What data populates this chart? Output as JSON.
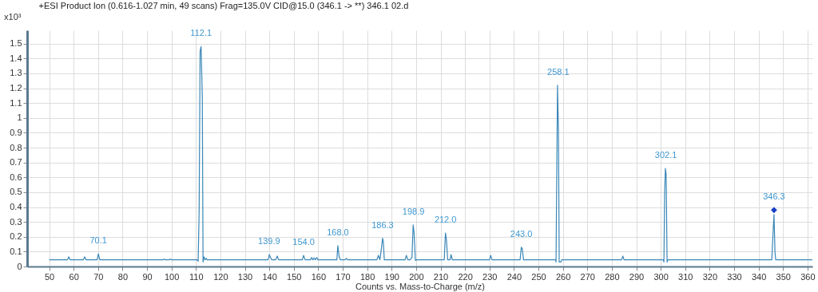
{
  "chart_data": {
    "type": "line",
    "title": "+ESI Product Ion (0.616-1.027 min, 49 scans) Frag=135.0V CID@15.0 (346.1 -> **) 346.1 02.d",
    "xlabel": "Counts vs. Mass-to-Charge (m/z)",
    "ylabel": "x10³",
    "xlim": [
      41,
      362
    ],
    "ylim": [
      0,
      1.59
    ],
    "xticks": [
      50,
      60,
      70,
      80,
      90,
      100,
      110,
      120,
      130,
      140,
      150,
      160,
      170,
      180,
      190,
      200,
      210,
      220,
      230,
      240,
      250,
      260,
      270,
      280,
      290,
      300,
      310,
      320,
      330,
      340,
      350,
      360
    ],
    "yticks": [
      0,
      0.1,
      0.2,
      0.3,
      0.4,
      0.5,
      0.6,
      0.7,
      0.8,
      0.9,
      1,
      1.1,
      1.2,
      1.3,
      1.4,
      1.5
    ],
    "grid": true,
    "line_style": "solid",
    "series": [
      {
        "color": "#3a87b8",
        "x": [
          50,
          57.5,
          58,
          58.6,
          64,
          64.5,
          65.1,
          69.6,
          70.1,
          70.7,
          96.6,
          97,
          97.5,
          99,
          99.5,
          100,
          110.5,
          110.9,
          111.3,
          111.7,
          112.1,
          112.4,
          112.6,
          112.9,
          113.3,
          113.7,
          114.2,
          114.6,
          139.5,
          140,
          140.5,
          141,
          142.6,
          143.2,
          143.8,
          153.5,
          154,
          154.6,
          156.8,
          157.3,
          157.8,
          158.3,
          158.8,
          159.4,
          159.9,
          167.6,
          168,
          168.5,
          169,
          171,
          171.5,
          172,
          184,
          184.6,
          185.2,
          185.8,
          186.3,
          186.6,
          187,
          195.5,
          196,
          196.6,
          197.5,
          198.3,
          198.8,
          199.2,
          199.7,
          200.2,
          211.5,
          212,
          212.4,
          212.9,
          213.9,
          214.3,
          214.8,
          230,
          230.5,
          231,
          242.5,
          243,
          243.4,
          243.9,
          257,
          257.2,
          257.5,
          257.8,
          258.2,
          258.5,
          259.2,
          259.5,
          284,
          284.5,
          285,
          301,
          301.3,
          301.6,
          301.9,
          302.2,
          302.6,
          303,
          345.4,
          345.9,
          346.3,
          346.7,
          347,
          362
        ],
        "values": [
          0.045,
          0.045,
          0.065,
          0.045,
          0.045,
          0.065,
          0.045,
          0.045,
          0.085,
          0.045,
          0.045,
          0.05,
          0.045,
          0.045,
          0.05,
          0.045,
          0.045,
          0.035,
          0.37,
          1.45,
          1.48,
          1.28,
          1.13,
          0.03,
          0.065,
          0.045,
          0.055,
          0.045,
          0.045,
          0.08,
          0.06,
          0.045,
          0.045,
          0.07,
          0.045,
          0.045,
          0.075,
          0.045,
          0.045,
          0.06,
          0.045,
          0.058,
          0.045,
          0.06,
          0.045,
          0.045,
          0.14,
          0.07,
          0.045,
          0.045,
          0.055,
          0.045,
          0.045,
          0.075,
          0.045,
          0.12,
          0.19,
          0.165,
          0.045,
          0.045,
          0.075,
          0.045,
          0.045,
          0.06,
          0.28,
          0.22,
          0.04,
          0.045,
          0.045,
          0.225,
          0.18,
          0.045,
          0.045,
          0.08,
          0.045,
          0.045,
          0.075,
          0.045,
          0.045,
          0.13,
          0.12,
          0.045,
          0.045,
          0.03,
          0.63,
          1.22,
          0.9,
          0.03,
          0.03,
          0.045,
          0.045,
          0.07,
          0.045,
          0.045,
          0.03,
          0.5,
          0.66,
          0.62,
          0.03,
          0.045,
          0.045,
          0.22,
          0.35,
          0.1,
          0.045,
          0.045
        ]
      },
      {
        "type": "scatter",
        "color": "#1a3fc8",
        "marker": "diamond",
        "x": [
          346.3
        ],
        "values": [
          0.38
        ]
      }
    ],
    "annotations": [
      {
        "text": "70.1",
        "x": 70.1,
        "y": 0.085
      },
      {
        "text": "112.1",
        "x": 112.1,
        "y": 1.48
      },
      {
        "text": "139.9",
        "x": 139.9,
        "y": 0.08
      },
      {
        "text": "154.0",
        "x": 154.0,
        "y": 0.075
      },
      {
        "text": "168.0",
        "x": 168.0,
        "y": 0.14
      },
      {
        "text": "186.3",
        "x": 186.3,
        "y": 0.19
      },
      {
        "text": "198.9",
        "x": 198.9,
        "y": 0.28
      },
      {
        "text": "212.0",
        "x": 212.0,
        "y": 0.225
      },
      {
        "text": "243.0",
        "x": 243.0,
        "y": 0.13
      },
      {
        "text": "258.1",
        "x": 258.1,
        "y": 1.22
      },
      {
        "text": "302.1",
        "x": 302.1,
        "y": 0.66
      },
      {
        "text": "346.3",
        "x": 346.3,
        "y": 0.38
      }
    ]
  }
}
